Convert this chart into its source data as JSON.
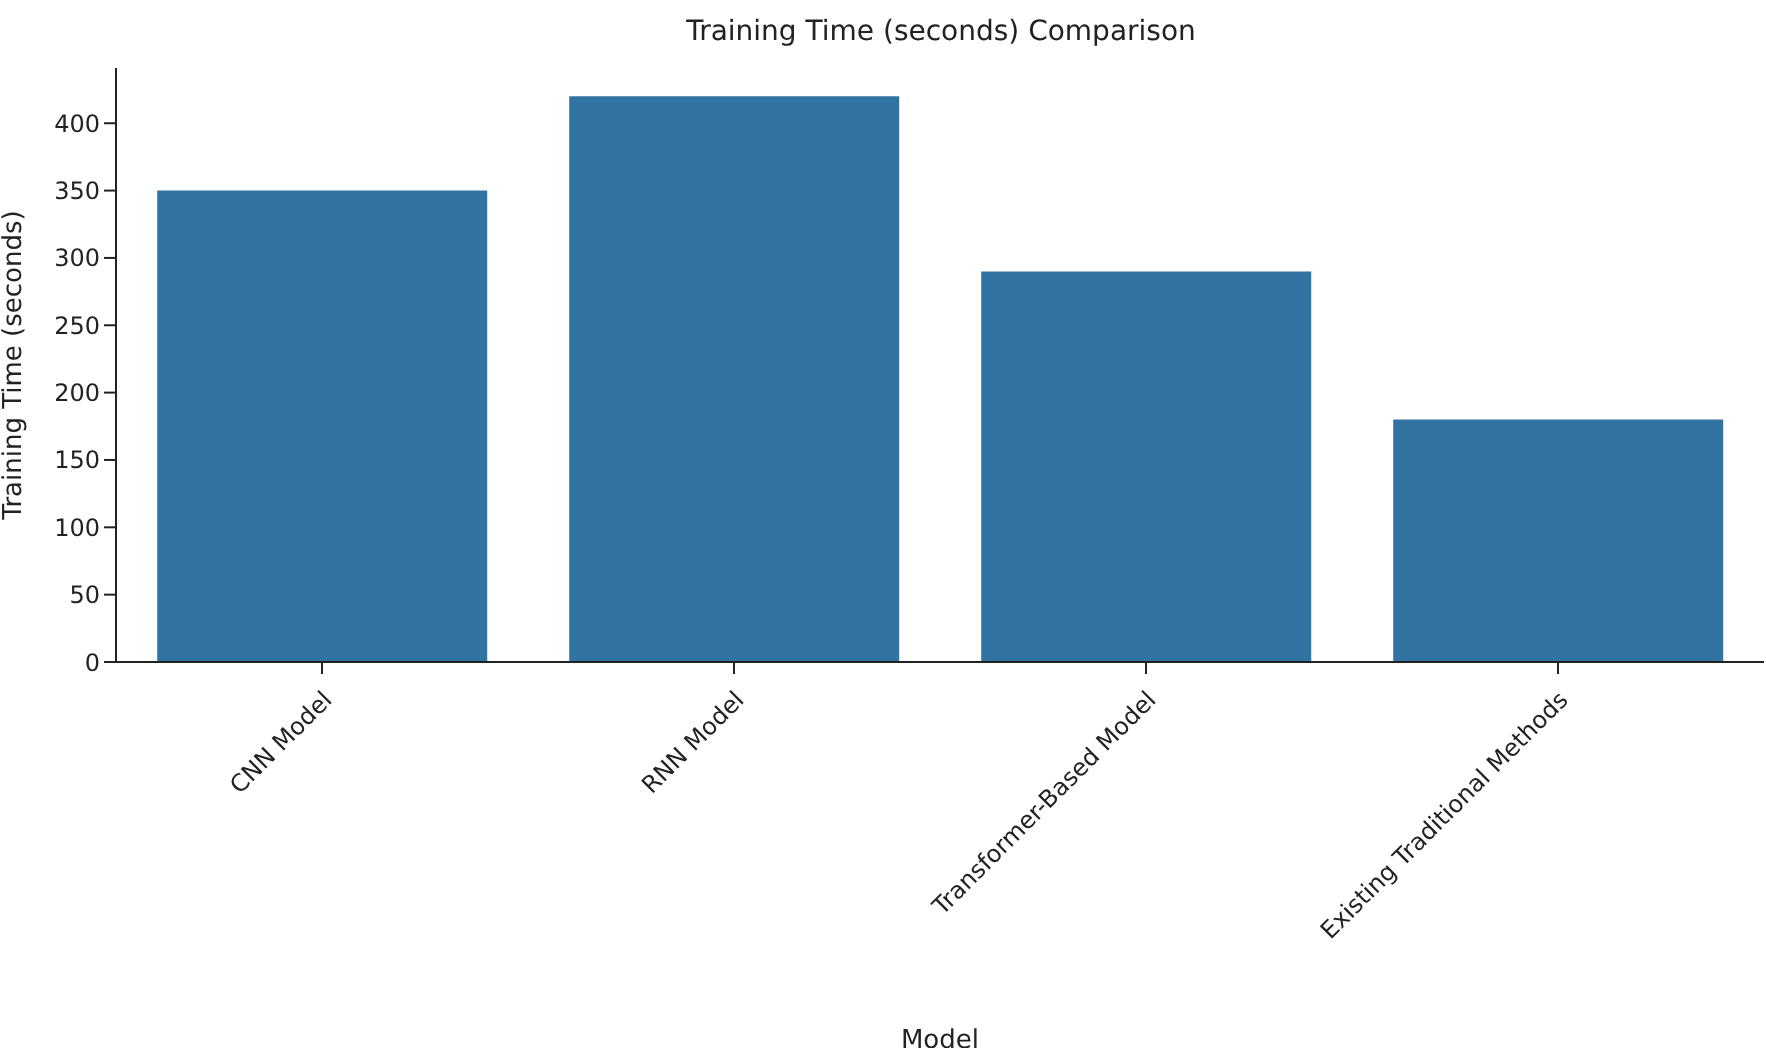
{
  "chart_data": {
    "type": "bar",
    "title": "Training Time (seconds) Comparison",
    "xlabel": "Model",
    "ylabel": "Training Time (seconds)",
    "categories": [
      "CNN Model",
      "RNN Model",
      "Transformer-Based Model",
      "Existing Traditional Methods"
    ],
    "values": [
      350,
      420,
      290,
      180
    ],
    "color": "#3274a1",
    "ylim": [
      0,
      441
    ],
    "yticks": [
      0,
      50,
      100,
      150,
      200,
      250,
      300,
      350,
      400
    ],
    "grid": false
  }
}
